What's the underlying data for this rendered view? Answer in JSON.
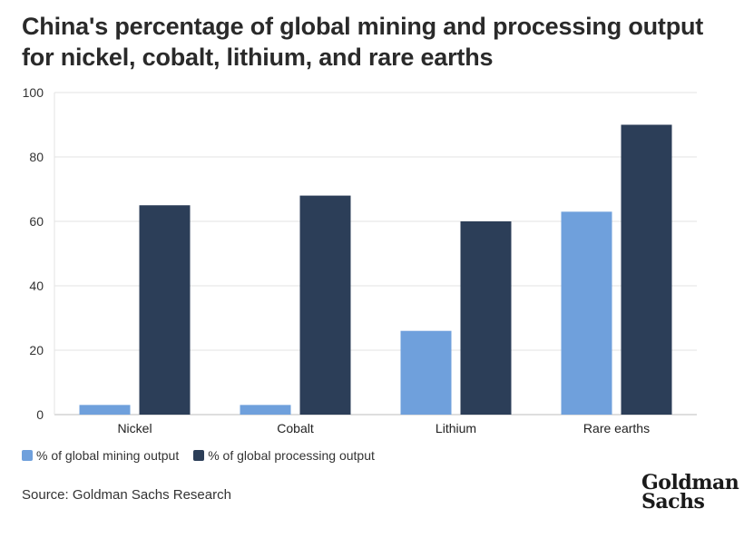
{
  "chart_data": {
    "type": "bar",
    "title": "China's percentage of global mining and processing output for nickel, cobalt, lithium, and rare earths",
    "categories": [
      "Nickel",
      "Cobalt",
      "Lithium",
      "Rare earths"
    ],
    "series": [
      {
        "name": "% of global mining output",
        "values": [
          3,
          3,
          26,
          63
        ],
        "color": "#6fa0dc"
      },
      {
        "name": "% of global processing output",
        "values": [
          65,
          68,
          60,
          90
        ],
        "color": "#2c3e58"
      }
    ],
    "yticks": [
      "0",
      "20",
      "40",
      "60",
      "80",
      "100"
    ],
    "ylim": [
      0,
      100
    ],
    "grid": true,
    "legend": "bottom-left"
  },
  "source": "Source: Goldman Sachs Research",
  "logo": {
    "line1": "Goldman",
    "line2": "Sachs"
  }
}
